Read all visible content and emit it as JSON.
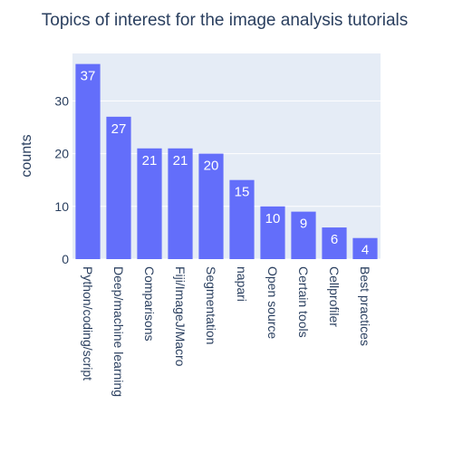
{
  "chart_data": {
    "type": "bar",
    "title": "Topics of interest for the image analysis tutorials",
    "xlabel": "",
    "ylabel": "counts",
    "categories": [
      "Python/coding/script",
      "Deep/machine learning",
      "Comparisons",
      "Fiji/ImageJ/Macro",
      "Segmentation",
      "napari",
      "Open source",
      "Certain tools",
      "Cellprofiler",
      "Best practices"
    ],
    "values": [
      37,
      27,
      21,
      21,
      20,
      15,
      10,
      9,
      6,
      4
    ],
    "data_labels": [
      "37",
      "27",
      "21",
      "21",
      "20",
      "15",
      "10",
      "9",
      "6",
      "4"
    ],
    "ylim": [
      0,
      39
    ],
    "yticks": [
      0,
      10,
      20,
      30
    ],
    "ytick_labels": [
      "0",
      "10",
      "20",
      "30"
    ],
    "grid": true,
    "legend": "none",
    "colors": {
      "bar": "#636efa",
      "plot_bg": "#e5ecf6",
      "grid": "#ffffff",
      "text": "#2a3f5f",
      "label": "#ffffff"
    }
  }
}
